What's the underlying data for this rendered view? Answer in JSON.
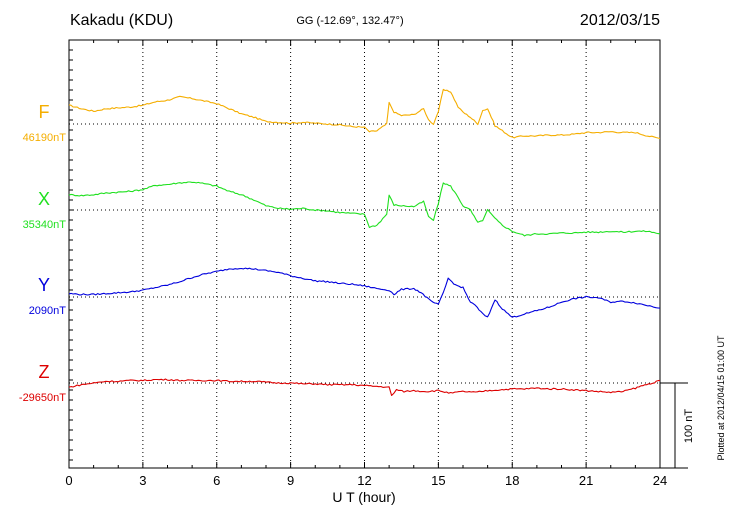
{
  "chart_data": {
    "type": "line",
    "title": "Kakadu (KDU)",
    "subtitle": "GG (-12.69°, 132.47°)",
    "date": "2012/03/15",
    "xlabel": "U T (hour)",
    "xlim": [
      0,
      24
    ],
    "xticks": [
      "0",
      "3",
      "6",
      "9",
      "12",
      "15",
      "18",
      "21",
      "24"
    ],
    "scale_bar_label": "100 nT",
    "plotted_note": "Plotted at 2012/04/15 01:00 UT",
    "grid": true,
    "series": [
      {
        "name": "F",
        "base_label": "46190nT",
        "color": "#f5ae00",
        "x": [
          0,
          0.5,
          1.0,
          1.5,
          2.0,
          2.5,
          3.0,
          3.5,
          4.0,
          4.5,
          5.0,
          5.5,
          6.0,
          6.5,
          7.0,
          7.5,
          8.0,
          8.5,
          9.0,
          9.5,
          10.0,
          10.5,
          11.0,
          11.5,
          12.0,
          12.2,
          12.5,
          12.9,
          13.0,
          13.2,
          13.5,
          14.0,
          14.4,
          14.6,
          14.8,
          15.0,
          15.2,
          15.5,
          15.8,
          16.0,
          16.3,
          16.6,
          16.8,
          17.0,
          17.3,
          17.6,
          18.0,
          18.5,
          19.0,
          19.5,
          20.0,
          20.5,
          21.0,
          21.5,
          22.0,
          22.5,
          23.0,
          23.5,
          24.0
        ],
        "y": [
          22,
          18,
          15,
          18,
          19,
          20,
          22,
          26,
          28,
          32,
          30,
          27,
          24,
          18,
          12,
          8,
          3,
          2,
          1,
          2,
          1,
          0,
          -1,
          -3,
          -4,
          -9,
          -8,
          0,
          25,
          14,
          10,
          11,
          18,
          5,
          0,
          15,
          40,
          38,
          20,
          14,
          8,
          0,
          16,
          18,
          -2,
          -8,
          -16,
          -14,
          -14,
          -13,
          -13,
          -12,
          -10,
          -10,
          -9,
          -10,
          -10,
          -14,
          -17
        ]
      },
      {
        "name": "X",
        "base_label": "35340nT",
        "color": "#1fe01f",
        "x": [
          0,
          0.5,
          1.0,
          1.5,
          2.0,
          2.5,
          3.0,
          3.5,
          4.0,
          4.5,
          5.0,
          5.5,
          6.0,
          6.5,
          7.0,
          7.5,
          8.0,
          8.5,
          9.0,
          9.5,
          10.0,
          10.5,
          11.0,
          11.5,
          12.0,
          12.2,
          12.5,
          12.9,
          13.0,
          13.2,
          13.5,
          14.0,
          14.4,
          14.6,
          14.8,
          15.0,
          15.2,
          15.5,
          15.8,
          16.0,
          16.3,
          16.6,
          16.8,
          17.0,
          17.3,
          17.6,
          18.0,
          18.5,
          19.0,
          19.5,
          20.0,
          20.5,
          21.0,
          21.5,
          22.0,
          22.5,
          23.0,
          23.5,
          24.0
        ],
        "y": [
          18,
          17,
          18,
          20,
          21,
          22,
          24,
          29,
          30,
          32,
          33,
          31,
          28,
          22,
          18,
          12,
          5,
          2,
          1,
          2,
          0,
          -1,
          -3,
          -4,
          -5,
          -20,
          -18,
          -5,
          17,
          6,
          5,
          4,
          10,
          -8,
          -12,
          8,
          32,
          28,
          15,
          5,
          0,
          -15,
          -12,
          0,
          -10,
          -18,
          -25,
          -30,
          -28,
          -28,
          -27,
          -27,
          -26,
          -26,
          -25,
          -26,
          -25,
          -25,
          -28
        ]
      },
      {
        "name": "Y",
        "base_label": "2090nT",
        "color": "#0000dd",
        "x": [
          0,
          0.5,
          1.0,
          1.5,
          2.0,
          2.5,
          3.0,
          3.5,
          4.0,
          4.5,
          5.0,
          5.5,
          6.0,
          6.5,
          7.0,
          7.5,
          8.0,
          8.5,
          9.0,
          9.5,
          10.0,
          10.5,
          11.0,
          11.5,
          12.0,
          12.5,
          13.0,
          13.2,
          13.5,
          14.0,
          14.3,
          14.7,
          15.0,
          15.2,
          15.4,
          15.7,
          16.0,
          16.3,
          16.5,
          16.8,
          17.0,
          17.3,
          17.6,
          18.0,
          18.5,
          19.0,
          19.5,
          20.0,
          20.5,
          21.0,
          21.5,
          22.0,
          22.5,
          23.0,
          23.5,
          24.0
        ],
        "y": [
          4,
          3,
          3,
          4,
          5,
          6,
          8,
          11,
          14,
          18,
          23,
          27,
          30,
          33,
          34,
          33,
          31,
          29,
          25,
          22,
          19,
          18,
          16,
          15,
          13,
          10,
          8,
          3,
          9,
          10,
          5,
          -5,
          -9,
          5,
          22,
          14,
          11,
          -6,
          -10,
          -20,
          -24,
          -3,
          -14,
          -24,
          -20,
          -16,
          -12,
          -6,
          -2,
          0,
          -1,
          -6,
          -5,
          -7,
          -10,
          -13
        ]
      },
      {
        "name": "Z",
        "base_label": "-29650nT",
        "color": "#dd0000",
        "x": [
          0,
          0.5,
          1.0,
          1.5,
          2.0,
          2.5,
          3.0,
          3.5,
          4.0,
          4.5,
          5.0,
          5.5,
          6.0,
          6.5,
          7.0,
          7.5,
          8.0,
          8.5,
          9.0,
          9.5,
          10.0,
          10.5,
          11.0,
          11.5,
          12.0,
          12.5,
          13.0,
          13.1,
          13.3,
          13.6,
          14.0,
          14.5,
          15.0,
          15.5,
          16.0,
          16.5,
          17.0,
          17.5,
          18.0,
          18.5,
          19.0,
          19.5,
          20.0,
          20.5,
          21.0,
          21.5,
          22.0,
          22.5,
          23.0,
          23.3,
          23.7,
          24.0
        ],
        "y": [
          -5,
          -2,
          0,
          2,
          2,
          3,
          3,
          4,
          4,
          3,
          3,
          3,
          3,
          2,
          2,
          2,
          1,
          0,
          0,
          -1,
          -1,
          -2,
          -2,
          -2,
          -3,
          -4,
          -5,
          -15,
          -8,
          -10,
          -9,
          -10,
          -9,
          -12,
          -10,
          -11,
          -9,
          -8,
          -7,
          -7,
          -6,
          -7,
          -7,
          -8,
          -9,
          -10,
          -11,
          -10,
          -6,
          -3,
          0,
          3
        ]
      }
    ]
  }
}
